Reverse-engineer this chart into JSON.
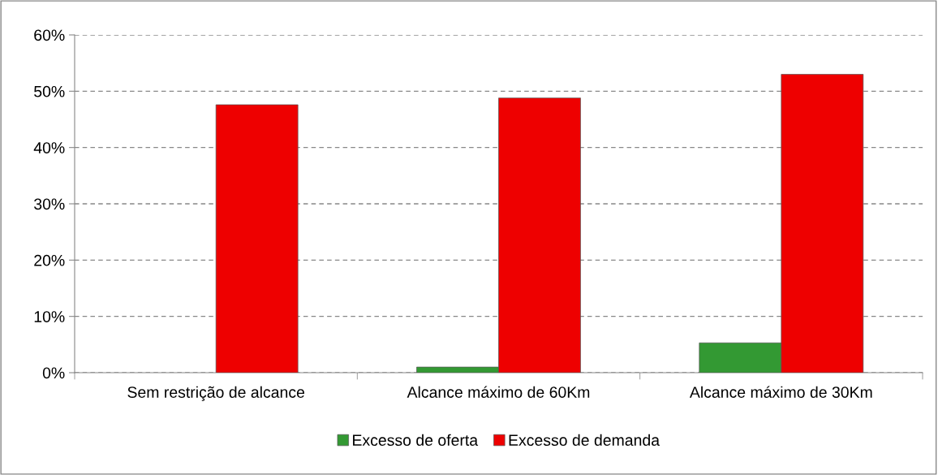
{
  "chart_data": {
    "type": "bar",
    "categories": [
      "Sem restrição de alcance",
      "Alcance máximo de 60Km",
      "Alcance máximo de 30Km"
    ],
    "series": [
      {
        "name": "Excesso de oferta",
        "color": "#339933",
        "values": [
          null,
          1.0,
          5.3
        ]
      },
      {
        "name": "Excesso de demanda",
        "color": "#ee0000",
        "values": [
          47.6,
          48.8,
          53.0
        ]
      }
    ],
    "ylim": [
      0,
      60
    ],
    "yticks": [
      {
        "value": 0,
        "label": "0%"
      },
      {
        "value": 10,
        "label": "10%"
      },
      {
        "value": 20,
        "label": "20%"
      },
      {
        "value": 30,
        "label": "30%"
      },
      {
        "value": 40,
        "label": "40%"
      },
      {
        "value": 50,
        "label": "50%"
      },
      {
        "value": 60,
        "label": "60%"
      }
    ],
    "grid": "y",
    "legend": "bottom"
  }
}
